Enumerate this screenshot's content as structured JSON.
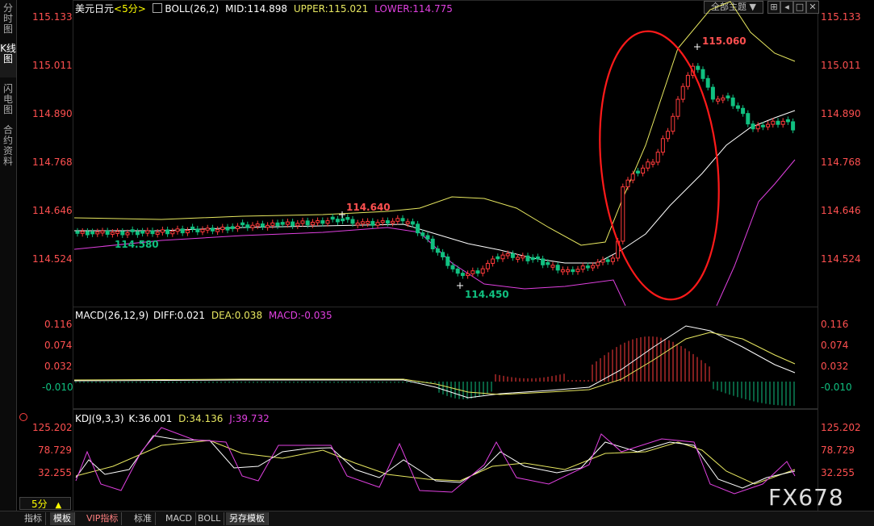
{
  "sidebar": {
    "items": [
      {
        "label": "分时图",
        "active": false
      },
      {
        "label": "K线图",
        "active": true
      },
      {
        "label": "闪电图",
        "active": false
      },
      {
        "label": "合约资料",
        "active": false
      }
    ]
  },
  "main_header": {
    "symbol": "美元日元",
    "period": "<5分>",
    "indicator": "BOLL(26,2)",
    "mid": "MID:114.898",
    "upper": "UPPER:115.021",
    "lower": "LOWER:114.775",
    "theme_select": "全部主题"
  },
  "controls": {
    "pin": "⊞",
    "prev": "◂",
    "maximize": "□",
    "close": "✕"
  },
  "price_axis": {
    "labels": [
      "115.133",
      "115.011",
      "114.890",
      "114.768",
      "114.646",
      "114.524"
    ]
  },
  "price_annotations": {
    "high_right": "115.060",
    "high_left": "114.640",
    "low_left": "114.580",
    "low_mid": "114.450"
  },
  "macd": {
    "header": "MACD(26,12,9)",
    "diff": "DIFF:0.021",
    "dea": "DEA:0.038",
    "macd": "MACD:-0.035",
    "axis": [
      "0.116",
      "0.074",
      "0.032",
      "-0.010"
    ]
  },
  "kdj": {
    "header": "KDJ(9,3,3)",
    "k": "K:36.001",
    "d": "D:34.136",
    "j": "J:39.732",
    "axis": [
      "125.202",
      "78.729",
      "32.255"
    ]
  },
  "period_selector": {
    "value": "5分",
    "arrow": "▲"
  },
  "bottom_tabs": [
    "指标",
    "模板",
    "VIP指标",
    "标准",
    "MACD",
    "BOLL",
    "另存模板"
  ],
  "watermark": "FX678",
  "colors": {
    "up": "#ff3b3b",
    "down": "#10c080",
    "mid_line": "#ffffff",
    "upper_line": "#e8e860",
    "lower_line": "#e040e0",
    "annotation_circle": "#ff1a1a",
    "axis_text": "#ff5050"
  }
}
